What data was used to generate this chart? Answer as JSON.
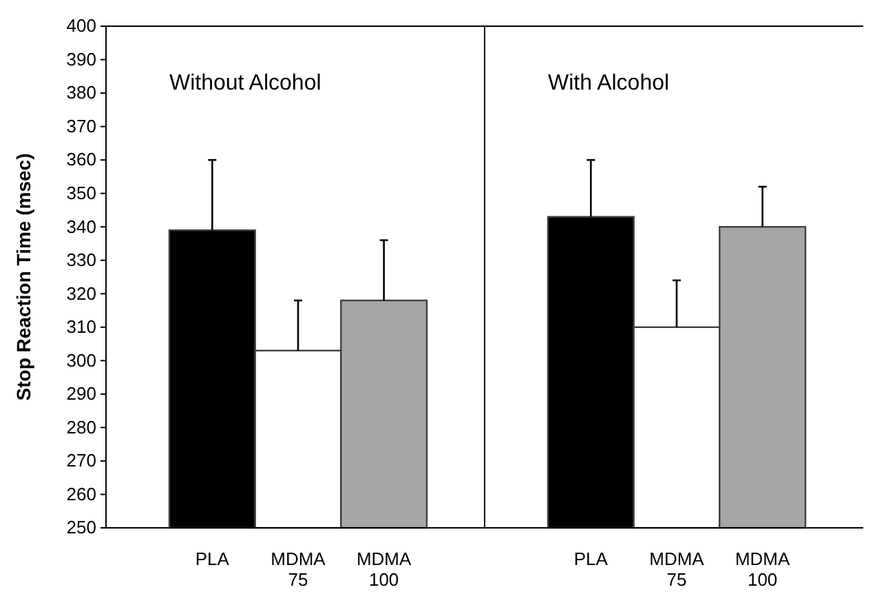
{
  "chart_data": [
    {
      "type": "bar",
      "title": "Without Alcohol",
      "ylabel": "Stop Reaction Time  (msec)",
      "categories": [
        "PLA",
        "MDMA 75",
        "MDMA 100"
      ],
      "values": [
        339,
        303,
        318
      ],
      "colors": [
        "#000000",
        "#ffffff",
        "#a6a6a6"
      ],
      "errors": [
        [
          339,
          360
        ],
        [
          303,
          318
        ],
        [
          318,
          336
        ]
      ],
      "ylim": [
        250,
        400
      ],
      "yticks": [
        250,
        260,
        270,
        280,
        290,
        300,
        310,
        320,
        330,
        340,
        350,
        360,
        370,
        380,
        390,
        400
      ]
    },
    {
      "type": "bar",
      "title": "With Alcohol",
      "categories": [
        "PLA",
        "MDMA 75",
        "MDMA 100"
      ],
      "values": [
        343,
        310,
        340
      ],
      "colors": [
        "#000000",
        "#ffffff",
        "#a6a6a6"
      ],
      "errors": [
        [
          343,
          360
        ],
        [
          310,
          324
        ],
        [
          340,
          352
        ]
      ],
      "ylim": [
        250,
        400
      ],
      "yticks": [
        250,
        260,
        270,
        280,
        290,
        300,
        310,
        320,
        330,
        340,
        350,
        360,
        370,
        380,
        390,
        400
      ],
      "tick_labels": "x"
    }
  ]
}
